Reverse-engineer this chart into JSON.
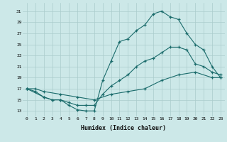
{
  "background_color": "#cce8e8",
  "grid_color": "#aacccc",
  "line_color": "#1a6b6b",
  "xlabel": "Humidex (Indice chaleur)",
  "xlim": [
    -0.5,
    23.5
  ],
  "ylim": [
    12,
    32.5
  ],
  "xticks": [
    0,
    1,
    2,
    3,
    4,
    5,
    6,
    7,
    8,
    9,
    10,
    11,
    12,
    13,
    14,
    15,
    16,
    17,
    18,
    19,
    20,
    21,
    22,
    23
  ],
  "yticks": [
    13,
    15,
    17,
    19,
    21,
    23,
    25,
    27,
    29,
    31
  ],
  "series1_x": [
    0,
    1,
    2,
    3,
    4,
    5,
    6,
    7,
    8,
    9,
    10,
    11,
    12,
    13,
    14,
    15,
    16,
    17,
    18,
    19,
    20,
    21,
    22,
    23
  ],
  "series1_y": [
    17,
    16.5,
    15.5,
    15,
    15,
    14,
    13.2,
    13,
    13,
    18.5,
    22,
    25.5,
    26,
    27.5,
    28.5,
    30.5,
    31,
    30,
    29.5,
    27,
    25,
    24,
    21,
    19
  ],
  "series2_x": [
    0,
    2,
    3,
    4,
    5,
    6,
    7,
    8,
    9,
    10,
    11,
    12,
    13,
    14,
    15,
    16,
    17,
    18,
    19,
    20,
    21,
    22,
    23
  ],
  "series2_y": [
    17,
    15.5,
    15,
    15,
    14.5,
    14,
    14,
    14,
    16,
    17.5,
    18.5,
    19.5,
    21,
    22,
    22.5,
    23.5,
    24.5,
    24.5,
    24,
    21.5,
    21,
    20,
    19.5
  ],
  "series3_x": [
    0,
    1,
    2,
    4,
    6,
    8,
    10,
    12,
    14,
    16,
    18,
    20,
    22,
    23
  ],
  "series3_y": [
    17,
    17,
    16.5,
    16,
    15.5,
    15,
    16,
    16.5,
    17,
    18.5,
    19.5,
    20,
    19,
    19
  ]
}
